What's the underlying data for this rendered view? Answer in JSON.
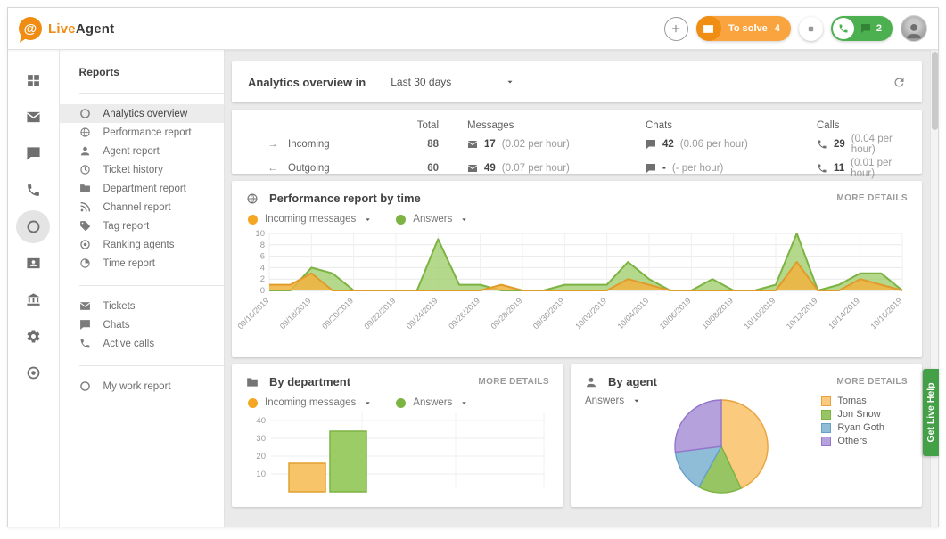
{
  "topbar": {
    "brand_live": "Live",
    "brand_agent": "Agent",
    "to_solve_label": "To solve",
    "to_solve_count": "4",
    "green_count": "2"
  },
  "rail": {
    "items": [
      {
        "icon": "grid-icon",
        "sym": "i-grid",
        "active": false
      },
      {
        "icon": "mail-icon",
        "sym": "i-mail",
        "active": false
      },
      {
        "icon": "chat-icon",
        "sym": "i-chat",
        "active": false
      },
      {
        "icon": "phone-icon",
        "sym": "i-phone",
        "active": false
      },
      {
        "icon": "circle-icon",
        "sym": "i-circle",
        "active": true
      },
      {
        "icon": "contact-card-icon",
        "sym": "i-card",
        "active": false
      },
      {
        "icon": "bank-icon",
        "sym": "i-bank",
        "active": false
      },
      {
        "icon": "gear-icon",
        "sym": "i-gear",
        "active": false
      },
      {
        "icon": "target-icon",
        "sym": "i-target",
        "active": false
      }
    ]
  },
  "reports": {
    "title": "Reports",
    "groups": [
      [
        {
          "label": "Analytics overview",
          "sym": "i-circle",
          "active": true
        },
        {
          "label": "Performance report",
          "sym": "i-globe",
          "active": false
        },
        {
          "label": "Agent report",
          "sym": "i-person",
          "active": false
        },
        {
          "label": "Ticket history",
          "sym": "i-history",
          "active": false
        },
        {
          "label": "Department report",
          "sym": "i-folder",
          "active": false
        },
        {
          "label": "Channel report",
          "sym": "i-rss",
          "active": false
        },
        {
          "label": "Tag report",
          "sym": "i-tag",
          "active": false
        },
        {
          "label": "Ranking agents",
          "sym": "i-target",
          "active": false
        },
        {
          "label": "Time report",
          "sym": "i-pie",
          "active": false
        }
      ],
      [
        {
          "label": "Tickets",
          "sym": "i-mail",
          "active": false
        },
        {
          "label": "Chats",
          "sym": "i-chat",
          "active": false
        },
        {
          "label": "Active calls",
          "sym": "i-phone",
          "active": false
        }
      ],
      [
        {
          "label": "My work report",
          "sym": "i-circle",
          "active": false
        }
      ]
    ]
  },
  "overview": {
    "title": "Analytics overview in",
    "range": "Last 30 days"
  },
  "stats": {
    "headers": [
      "Total",
      "Messages",
      "Chats",
      "Calls"
    ],
    "rows": [
      {
        "arrow": "→",
        "label": "Incoming",
        "total": "88",
        "messages": "17",
        "messages_rate": "(0.02 per hour)",
        "chats": "42",
        "chats_rate": "(0.06 per hour)",
        "calls": "29",
        "calls_rate": "(0.04 per hour)"
      },
      {
        "arrow": "←",
        "label": "Outgoing",
        "total": "60",
        "messages": "49",
        "messages_rate": "(0.07 per hour)",
        "chats": "-",
        "chats_rate": "(- per hour)",
        "calls": "11",
        "calls_rate": "(0.01 per hour)"
      }
    ]
  },
  "performance": {
    "title": "Performance report by time",
    "more": "MORE DETAILS"
  },
  "department": {
    "title": "By department",
    "more": "MORE DETAILS"
  },
  "agent": {
    "title": "By agent",
    "more": "MORE DETAILS",
    "filter": "Answers"
  },
  "legend_pair": [
    {
      "label": "Incoming messages",
      "color": "#F5A623"
    },
    {
      "label": "Answers",
      "color": "#7CB342"
    }
  ],
  "help_tab": "Get Live Help",
  "chart_data": [
    {
      "type": "area",
      "title": "Performance report by time",
      "x": [
        "09/16/2019",
        "09/17/2019",
        "09/18/2019",
        "09/19/2019",
        "09/20/2019",
        "09/21/2019",
        "09/22/2019",
        "09/23/2019",
        "09/24/2019",
        "09/25/2019",
        "09/26/2019",
        "09/27/2019",
        "09/28/2019",
        "09/29/2019",
        "09/30/2019",
        "10/01/2019",
        "10/02/2019",
        "10/03/2019",
        "10/04/2019",
        "10/05/2019",
        "10/06/2019",
        "10/07/2019",
        "10/08/2019",
        "10/09/2019",
        "10/10/2019",
        "10/11/2019",
        "10/12/2019",
        "10/13/2019",
        "10/14/2019",
        "10/15/2019",
        "10/16/2019"
      ],
      "x_tick_labels": [
        "09/16/2019",
        "09/18/2019",
        "09/20/2019",
        "09/22/2019",
        "09/24/2019",
        "09/26/2019",
        "09/28/2019",
        "09/30/2019",
        "10/02/2019",
        "10/04/2019",
        "10/06/2019",
        "10/08/2019",
        "10/10/2019",
        "10/12/2019",
        "10/14/2019",
        "10/16/2019"
      ],
      "series": [
        {
          "name": "Incoming messages",
          "color": "#E09C2B",
          "fill": "rgba(242,178,64,0.85)",
          "values": [
            1,
            1,
            3,
            0,
            0,
            0,
            0,
            0,
            0,
            0,
            0,
            1,
            0,
            0,
            0,
            0,
            0,
            2,
            1,
            0,
            0,
            0,
            0,
            0,
            0,
            5,
            0,
            0,
            2,
            1,
            0
          ]
        },
        {
          "name": "Answers",
          "color": "#7CB342",
          "fill": "rgba(156,204,101,0.75)",
          "values": [
            0,
            0,
            4,
            3,
            0,
            0,
            0,
            0,
            9,
            1,
            1,
            0,
            0,
            0,
            1,
            1,
            1,
            5,
            2,
            0,
            0,
            2,
            0,
            0,
            1,
            10,
            0,
            1,
            3,
            3,
            0
          ]
        }
      ],
      "ylim": [
        0,
        10
      ],
      "yticks": [
        0,
        2,
        4,
        6,
        8,
        10
      ],
      "grid": true,
      "legend_position": "top-left"
    },
    {
      "type": "bar",
      "title": "By department",
      "categories": [
        ""
      ],
      "series": [
        {
          "name": "Incoming messages",
          "color": "#F7C469",
          "stroke": "#E0A030",
          "values": [
            16
          ]
        },
        {
          "name": "Answers",
          "color": "#9CCC65",
          "stroke": "#7CB342",
          "values": [
            34
          ]
        }
      ],
      "yticks": [
        10,
        20,
        30,
        40
      ],
      "grid": true,
      "clipped_bottom": true
    },
    {
      "type": "pie",
      "title": "By agent",
      "metric": "Answers",
      "labels": [
        "Tomas",
        "Jon Snow",
        "Ryan Goth",
        "Others"
      ],
      "values_pct": [
        43,
        15,
        15,
        27
      ],
      "colors": [
        "#FACB7E",
        "#97C563",
        "#8FBCD6",
        "#B5A1DB"
      ],
      "strokes": [
        "#E8A33D",
        "#7CB342",
        "#64A0C8",
        "#9575CD"
      ],
      "legend_position": "right"
    }
  ]
}
